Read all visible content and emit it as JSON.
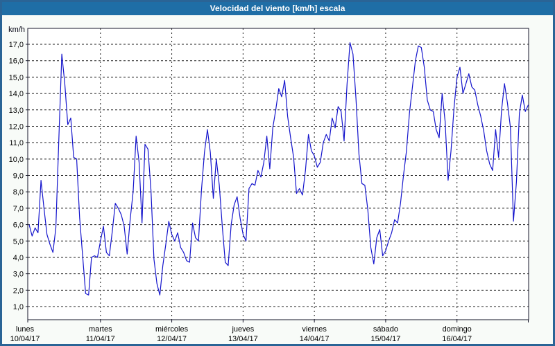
{
  "window": {
    "title": "Velocidad del viento [km/h] escala"
  },
  "colors": {
    "title_bar_bg": "#1f6ea6",
    "title_text": "#ffffff",
    "frame_border": "#2a6496",
    "panel_bg": "#f8fbf8",
    "plot_bg": "#ffffff",
    "plot_border": "#16162a",
    "grid": "#1c1c1c",
    "line": "#1414cc",
    "axis_text": "#000000"
  },
  "chart_data": {
    "type": "line",
    "title": "Velocidad del viento [km/h] escala",
    "ylabel": "km/h",
    "xlabel": "",
    "unit": "km/h",
    "ylim": [
      0.2,
      18.0
    ],
    "grid": "dashed",
    "legend_position": "none",
    "y_ticks": [
      17,
      16,
      15,
      14,
      13,
      12,
      11,
      10,
      9,
      8,
      7,
      6,
      5,
      4,
      3,
      2,
      1
    ],
    "y_tick_labels": [
      "17,0",
      "16,0",
      "15,0",
      "14,0",
      "13,0",
      "12,0",
      "11,0",
      "10,0",
      "9,0",
      "8,0",
      "7,0",
      "6,0",
      "5,0",
      "4,0",
      "3,0",
      "2,0",
      "1,0"
    ],
    "x_days": [
      {
        "name": "lunes",
        "date": "10/04/17"
      },
      {
        "name": "martes",
        "date": "11/04/17"
      },
      {
        "name": "miércoles",
        "date": "12/04/17"
      },
      {
        "name": "jueves",
        "date": "13/04/17"
      },
      {
        "name": "viernes",
        "date": "14/04/17"
      },
      {
        "name": "sábado",
        "date": "15/04/17"
      },
      {
        "name": "domingo",
        "date": "16/04/17"
      }
    ],
    "points_per_day": 24,
    "series": [
      {
        "name": "Velocidad del viento",
        "unit": "km/h",
        "values": [
          6.0,
          5.3,
          5.8,
          5.5,
          8.7,
          7.0,
          5.4,
          4.8,
          4.3,
          5.8,
          11.2,
          16.4,
          14.6,
          12.1,
          12.5,
          10.1,
          10.0,
          6.4,
          4.1,
          1.8,
          1.7,
          4.0,
          4.1,
          4.0,
          5.0,
          5.9,
          4.3,
          4.1,
          5.6,
          7.3,
          7.0,
          6.6,
          5.9,
          4.2,
          6.3,
          8.0,
          11.4,
          9.8,
          6.1,
          10.9,
          10.6,
          8.1,
          3.9,
          2.4,
          1.7,
          3.5,
          4.8,
          6.2,
          5.4,
          5.0,
          5.5,
          4.6,
          4.3,
          3.8,
          3.7,
          6.1,
          5.2,
          5.0,
          8.1,
          10.4,
          11.8,
          10.4,
          7.6,
          10.0,
          8.4,
          5.9,
          3.7,
          3.5,
          6.0,
          7.2,
          7.7,
          6.4,
          5.4,
          5.0,
          8.2,
          8.5,
          8.4,
          9.3,
          8.9,
          9.8,
          11.4,
          9.4,
          11.9,
          13.0,
          14.3,
          13.8,
          14.8,
          12.6,
          11.3,
          10.1,
          7.9,
          8.2,
          7.8,
          9.3,
          11.5,
          10.5,
          10.2,
          9.5,
          9.8,
          11.0,
          11.5,
          11.1,
          12.5,
          11.9,
          13.2,
          12.9,
          11.1,
          14.6,
          17.1,
          16.4,
          13.7,
          10.3,
          8.5,
          8.4,
          6.9,
          4.6,
          3.6,
          5.2,
          5.7,
          4.1,
          4.4,
          5.0,
          5.5,
          6.3,
          6.1,
          7.3,
          9.0,
          10.5,
          12.8,
          14.4,
          16.0,
          16.9,
          16.8,
          15.6,
          13.6,
          13.0,
          12.9,
          11.8,
          11.3,
          14.0,
          12.3,
          8.7,
          10.5,
          13.1,
          15.0,
          15.6,
          14.0,
          14.6,
          15.2,
          14.4,
          14.2,
          13.3,
          12.6,
          11.7,
          10.5,
          9.7,
          9.3,
          11.8,
          10.1,
          13.0,
          14.6,
          13.4,
          11.9,
          6.2,
          8.6,
          12.8,
          13.9,
          12.9,
          13.3
        ]
      }
    ]
  }
}
